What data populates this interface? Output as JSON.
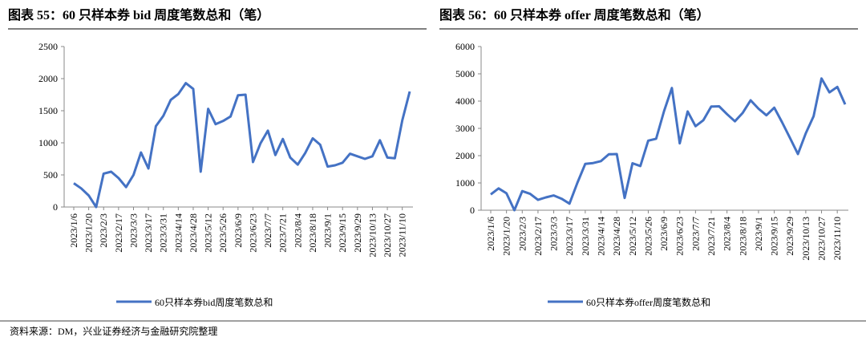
{
  "chart_data": [
    {
      "type": "line",
      "title": "图表 55：60 只样本券 bid 周度笔数总和（笔）",
      "categories": [
        "2023/1/6",
        null,
        "2023/1/20",
        null,
        "2023/2/3",
        null,
        "2023/2/17",
        null,
        "2023/3/3",
        null,
        "2023/3/17",
        null,
        "2023/3/31",
        null,
        "2023/4/14",
        null,
        "2023/4/28",
        null,
        "2023/5/12",
        null,
        "2023/5/26",
        null,
        "2023/6/9",
        null,
        "2023/6/23",
        null,
        "2023/7/7",
        null,
        "2023/7/21",
        null,
        "2023/8/4",
        null,
        "2023/8/18",
        null,
        "2023/9/1",
        null,
        "2023/9/15",
        null,
        "2023/9/29",
        null,
        "2023/10/13",
        null,
        "2023/10/27",
        null,
        "2023/11/10",
        null
      ],
      "series": [
        {
          "name": "60只样本券bid周度笔数总和",
          "color": "#4472c4",
          "values": [
            370,
            290,
            180,
            0,
            520,
            550,
            450,
            310,
            500,
            850,
            600,
            1260,
            1420,
            1670,
            1760,
            1930,
            1840,
            550,
            1530,
            1290,
            1340,
            1410,
            1740,
            1750,
            700,
            990,
            1190,
            810,
            1060,
            770,
            660,
            840,
            1070,
            970,
            630,
            650,
            690,
            830,
            790,
            750,
            790,
            1040,
            770,
            760,
            1350,
            1800
          ]
        }
      ],
      "ylim": [
        0,
        2500
      ],
      "yticks": [
        0,
        500,
        1000,
        1500,
        2000,
        2500
      ],
      "legend": "bottom"
    },
    {
      "type": "line",
      "title": "图表 56：60 只样本券 offer 周度笔数总和（笔）",
      "categories": [
        "2023/1/6",
        null,
        "2023/1/20",
        null,
        "2023/2/3",
        null,
        "2023/2/17",
        null,
        "2023/3/3",
        null,
        "2023/3/17",
        null,
        "2023/3/31",
        null,
        "2023/4/14",
        null,
        "2023/4/28",
        null,
        "2023/5/12",
        null,
        "2023/5/26",
        null,
        "2023/6/9",
        null,
        "2023/6/23",
        null,
        "2023/7/7",
        null,
        "2023/7/21",
        null,
        "2023/8/4",
        null,
        "2023/8/18",
        null,
        "2023/9/1",
        null,
        "2023/9/15",
        null,
        "2023/9/29",
        null,
        "2023/10/13",
        null,
        "2023/10/27",
        null,
        "2023/11/10",
        null
      ],
      "series": [
        {
          "name": "60只样本券offer周度笔数总和",
          "color": "#4472c4",
          "values": [
            580,
            800,
            620,
            0,
            700,
            600,
            380,
            470,
            540,
            420,
            240,
            1000,
            1700,
            1730,
            1800,
            2050,
            2060,
            450,
            1720,
            1620,
            2550,
            2620,
            3630,
            4480,
            2450,
            3620,
            3080,
            3300,
            3800,
            3810,
            3520,
            3260,
            3570,
            4030,
            3720,
            3480,
            3760,
            3220,
            2650,
            2060,
            2820,
            3450,
            4830,
            4320,
            4520,
            3880
          ]
        }
      ],
      "ylim": [
        0,
        6000
      ],
      "yticks": [
        0,
        1000,
        2000,
        3000,
        4000,
        5000,
        6000
      ],
      "legend": "bottom"
    }
  ],
  "source": "资料来源：DM，兴业证券经济与金融研究院整理"
}
